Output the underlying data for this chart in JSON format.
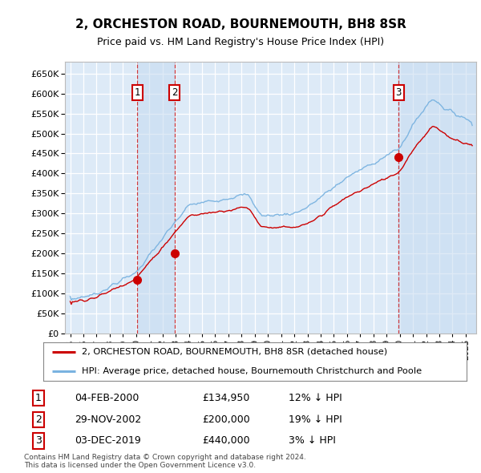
{
  "title": "2, ORCHESTON ROAD, BOURNEMOUTH, BH8 8SR",
  "subtitle": "Price paid vs. HM Land Registry's House Price Index (HPI)",
  "ylim": [
    0,
    680000
  ],
  "yticks": [
    0,
    50000,
    100000,
    150000,
    200000,
    250000,
    300000,
    350000,
    400000,
    450000,
    500000,
    550000,
    600000,
    650000
  ],
  "background_color": "#ffffff",
  "plot_bg_color": "#ddeaf7",
  "grid_color": "#ffffff",
  "hpi_color": "#7ab3e0",
  "pp_color": "#cc0000",
  "legend_line1": "2, ORCHESTON ROAD, BOURNEMOUTH, BH8 8SR (detached house)",
  "legend_line2": "HPI: Average price, detached house, Bournemouth Christchurch and Poole",
  "sale_x1": 2000.09,
  "sale_y1": 134950,
  "sale_label1": "1",
  "sale_date1": "04-FEB-2000",
  "sale_price1": "£134,950",
  "sale_hpi1": "12% ↓ HPI",
  "sale_x2": 2002.91,
  "sale_y2": 200000,
  "sale_label2": "2",
  "sale_date2": "29-NOV-2002",
  "sale_price2": "£200,000",
  "sale_hpi2": "19% ↓ HPI",
  "sale_x3": 2019.92,
  "sale_y3": 440000,
  "sale_label3": "3",
  "sale_date3": "03-DEC-2019",
  "sale_price3": "£440,000",
  "sale_hpi3": "3% ↓ HPI",
  "xmin": 1994.6,
  "xmax": 2025.8,
  "footer1": "Contains HM Land Registry data © Crown copyright and database right 2024.",
  "footer2": "This data is licensed under the Open Government Licence v3.0."
}
